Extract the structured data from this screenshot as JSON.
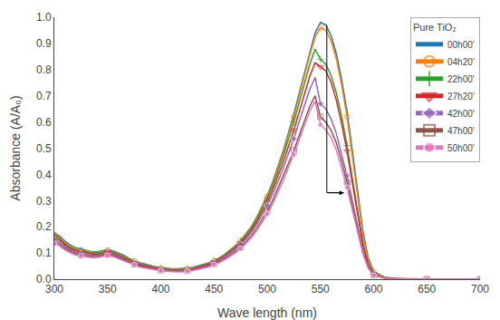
{
  "chart_data": {
    "type": "line",
    "title": "Pure TiO₂",
    "xlabel": "Wave length (nm)",
    "ylabel": "Absorbance (A/A₀)",
    "xlim": [
      300,
      700
    ],
    "ylim": [
      0,
      1.0
    ],
    "xticks": [
      300,
      350,
      400,
      450,
      500,
      550,
      600,
      650,
      700
    ],
    "yticks": [
      {
        "value": 0.0,
        "label": "0.0"
      },
      0.1,
      0.2,
      0.3,
      0.4,
      0.5,
      0.6,
      0.7,
      0.8,
      0.9,
      {
        "value": 1.0,
        "label": "1.0"
      }
    ],
    "grid": false,
    "legend": "upper right",
    "x": [
      300,
      305,
      310,
      315,
      320,
      325,
      330,
      335,
      340,
      345,
      350,
      355,
      360,
      365,
      370,
      375,
      380,
      385,
      390,
      395,
      400,
      405,
      410,
      415,
      420,
      425,
      430,
      435,
      440,
      445,
      450,
      455,
      460,
      465,
      470,
      475,
      480,
      485,
      490,
      495,
      500,
      505,
      510,
      515,
      520,
      525,
      530,
      535,
      540,
      545,
      550,
      555,
      560,
      565,
      570,
      575,
      580,
      585,
      590,
      595,
      600,
      610,
      620,
      630,
      640,
      650,
      660,
      670,
      680,
      690,
      700
    ],
    "series": [
      {
        "name": "00h00'",
        "marker": "none",
        "values": [
          0.175,
          0.165,
          0.145,
          0.13,
          0.12,
          0.115,
          0.11,
          0.105,
          0.105,
          0.108,
          0.112,
          0.108,
          0.1,
          0.092,
          0.08,
          0.07,
          0.063,
          0.058,
          0.052,
          0.048,
          0.045,
          0.042,
          0.04,
          0.04,
          0.04,
          0.042,
          0.045,
          0.05,
          0.055,
          0.062,
          0.072,
          0.082,
          0.095,
          0.11,
          0.128,
          0.148,
          0.172,
          0.2,
          0.235,
          0.275,
          0.32,
          0.37,
          0.43,
          0.49,
          0.56,
          0.63,
          0.71,
          0.79,
          0.87,
          0.94,
          0.98,
          0.97,
          0.93,
          0.86,
          0.76,
          0.64,
          0.49,
          0.33,
          0.18,
          0.08,
          0.03,
          0.008,
          0.003,
          0.002,
          0.001,
          0.001,
          0.0,
          0.0,
          0.0,
          0.0,
          0.0
        ]
      },
      {
        "name": "04h20'",
        "marker": "circle-open",
        "values": [
          0.17,
          0.16,
          0.14,
          0.125,
          0.115,
          0.11,
          0.108,
          0.103,
          0.102,
          0.105,
          0.11,
          0.105,
          0.097,
          0.088,
          0.078,
          0.068,
          0.06,
          0.055,
          0.05,
          0.046,
          0.042,
          0.04,
          0.038,
          0.038,
          0.038,
          0.04,
          0.043,
          0.048,
          0.053,
          0.06,
          0.07,
          0.08,
          0.093,
          0.108,
          0.126,
          0.146,
          0.17,
          0.198,
          0.233,
          0.272,
          0.316,
          0.366,
          0.425,
          0.483,
          0.552,
          0.62,
          0.698,
          0.778,
          0.856,
          0.924,
          0.96,
          0.95,
          0.91,
          0.84,
          0.74,
          0.62,
          0.472,
          0.312,
          0.165,
          0.072,
          0.027,
          0.007,
          0.003,
          0.002,
          0.001,
          0.001,
          0.0,
          0.0,
          0.0,
          0.0,
          0.0
        ]
      },
      {
        "name": "22h00'",
        "marker": "cross-thin-open",
        "values": [
          0.165,
          0.155,
          0.135,
          0.12,
          0.112,
          0.107,
          0.105,
          0.1,
          0.1,
          0.102,
          0.107,
          0.103,
          0.094,
          0.085,
          0.075,
          0.065,
          0.058,
          0.053,
          0.048,
          0.044,
          0.04,
          0.038,
          0.036,
          0.036,
          0.036,
          0.038,
          0.041,
          0.046,
          0.051,
          0.058,
          0.068,
          0.078,
          0.091,
          0.106,
          0.123,
          0.143,
          0.167,
          0.194,
          0.228,
          0.266,
          0.308,
          0.356,
          0.413,
          0.468,
          0.535,
          0.6,
          0.674,
          0.75,
          0.82,
          0.878,
          0.84,
          0.82,
          0.778,
          0.71,
          0.62,
          0.51,
          0.385,
          0.252,
          0.133,
          0.058,
          0.02,
          0.006,
          0.002,
          0.001,
          0.001,
          0.0,
          0.0,
          0.0,
          0.0,
          0.0,
          0.0
        ]
      },
      {
        "name": "27h20'",
        "marker": "triangle-down-open",
        "values": [
          0.158,
          0.148,
          0.13,
          0.116,
          0.108,
          0.103,
          0.1,
          0.096,
          0.096,
          0.099,
          0.104,
          0.1,
          0.091,
          0.082,
          0.072,
          0.063,
          0.056,
          0.051,
          0.046,
          0.042,
          0.038,
          0.036,
          0.034,
          0.034,
          0.034,
          0.036,
          0.039,
          0.044,
          0.049,
          0.056,
          0.066,
          0.076,
          0.088,
          0.103,
          0.12,
          0.138,
          0.16,
          0.186,
          0.218,
          0.254,
          0.295,
          0.34,
          0.393,
          0.446,
          0.508,
          0.568,
          0.638,
          0.71,
          0.775,
          0.826,
          0.81,
          0.795,
          0.752,
          0.682,
          0.592,
          0.488,
          0.368,
          0.242,
          0.128,
          0.055,
          0.018,
          0.005,
          0.002,
          0.001,
          0.0,
          0.0,
          0.0,
          0.0,
          0.0,
          0.0,
          0.0
        ]
      },
      {
        "name": "42h00'",
        "marker": "diamond",
        "values": [
          0.15,
          0.14,
          0.123,
          0.11,
          0.102,
          0.098,
          0.095,
          0.091,
          0.091,
          0.094,
          0.099,
          0.095,
          0.087,
          0.078,
          0.068,
          0.06,
          0.053,
          0.048,
          0.043,
          0.04,
          0.036,
          0.034,
          0.032,
          0.032,
          0.032,
          0.034,
          0.037,
          0.042,
          0.047,
          0.053,
          0.062,
          0.072,
          0.084,
          0.098,
          0.114,
          0.132,
          0.153,
          0.178,
          0.208,
          0.242,
          0.28,
          0.323,
          0.373,
          0.422,
          0.48,
          0.536,
          0.6,
          0.665,
          0.725,
          0.77,
          0.67,
          0.65,
          0.612,
          0.555,
          0.48,
          0.395,
          0.3,
          0.196,
          0.105,
          0.046,
          0.016,
          0.004,
          0.001,
          0.001,
          0.0,
          0.0,
          0.0,
          0.0,
          0.0,
          0.0,
          0.0
        ]
      },
      {
        "name": "47h00'",
        "marker": "square-open",
        "values": [
          0.143,
          0.133,
          0.117,
          0.105,
          0.097,
          0.093,
          0.09,
          0.086,
          0.087,
          0.09,
          0.095,
          0.091,
          0.083,
          0.074,
          0.065,
          0.057,
          0.05,
          0.045,
          0.041,
          0.037,
          0.034,
          0.032,
          0.03,
          0.03,
          0.03,
          0.032,
          0.035,
          0.039,
          0.044,
          0.05,
          0.058,
          0.067,
          0.078,
          0.091,
          0.106,
          0.123,
          0.143,
          0.166,
          0.194,
          0.225,
          0.26,
          0.299,
          0.345,
          0.39,
          0.442,
          0.492,
          0.548,
          0.608,
          0.66,
          0.7,
          0.62,
          0.6,
          0.568,
          0.52,
          0.45,
          0.37,
          0.282,
          0.186,
          0.1,
          0.044,
          0.015,
          0.004,
          0.001,
          0.001,
          0.0,
          0.0,
          0.0,
          0.0,
          0.0,
          0.0,
          0.0
        ]
      },
      {
        "name": "50h00'",
        "marker": "circle",
        "values": [
          0.135,
          0.126,
          0.111,
          0.1,
          0.092,
          0.088,
          0.085,
          0.082,
          0.082,
          0.085,
          0.09,
          0.086,
          0.078,
          0.07,
          0.062,
          0.054,
          0.047,
          0.042,
          0.038,
          0.035,
          0.032,
          0.03,
          0.028,
          0.028,
          0.028,
          0.03,
          0.033,
          0.037,
          0.041,
          0.047,
          0.055,
          0.063,
          0.074,
          0.086,
          0.1,
          0.116,
          0.135,
          0.157,
          0.184,
          0.214,
          0.248,
          0.287,
          0.332,
          0.376,
          0.428,
          0.476,
          0.532,
          0.59,
          0.642,
          0.68,
          0.59,
          0.57,
          0.54,
          0.492,
          0.425,
          0.35,
          0.264,
          0.175,
          0.095,
          0.042,
          0.014,
          0.004,
          0.001,
          0.001,
          0.0,
          0.0,
          0.0,
          0.0,
          0.0,
          0.0,
          0.0
        ]
      }
    ],
    "arrow": {
      "x": [
        556,
        556,
        572
      ],
      "y": [
        0.97,
        0.33,
        0.33
      ]
    }
  }
}
